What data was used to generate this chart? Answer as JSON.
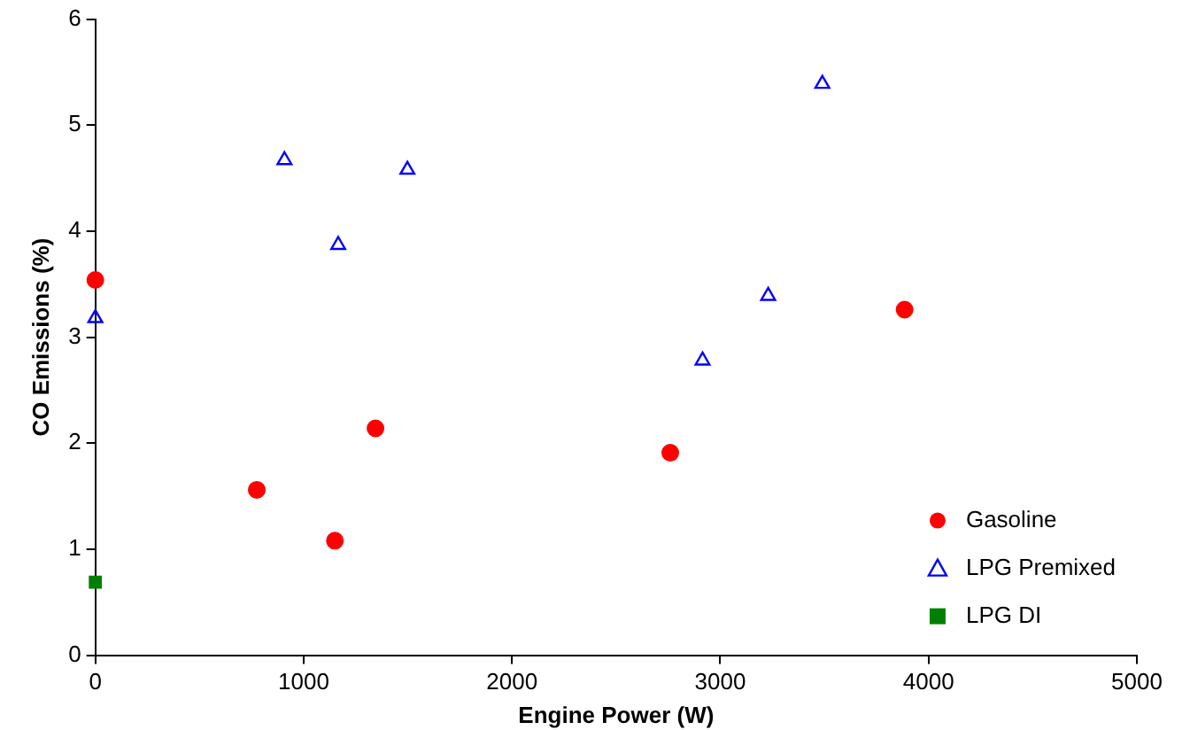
{
  "chart_data": {
    "type": "scatter",
    "xlabel": "Engine Power (W)",
    "ylabel": "CO Emissions (%)",
    "xlim": [
      0,
      5000
    ],
    "xticks": [
      0,
      1000,
      2000,
      3000,
      4000,
      5000
    ],
    "ylim": [
      0,
      6
    ],
    "yticks": [
      0,
      1,
      2,
      3,
      4,
      5,
      6
    ],
    "grid": false,
    "legend": "bottom right",
    "series": [
      {
        "name": "Gasoline",
        "color": "#ff0000",
        "marker": "circle",
        "x": [
          0,
          775,
          1150,
          1345,
          2760,
          3885
        ],
        "values": [
          3.54,
          1.56,
          1.08,
          2.14,
          1.91,
          3.26
        ]
      },
      {
        "name": "LPG Premixed",
        "color": "#0000ff",
        "marker": "triangle",
        "x": [
          0,
          908,
          1166,
          1498,
          2915,
          3230,
          3490
        ],
        "values": [
          3.18,
          4.67,
          3.87,
          4.58,
          2.78,
          3.39,
          5.39
        ]
      },
      {
        "name": "LPG DI",
        "color": "#008000",
        "marker": "square",
        "x": [
          0
        ],
        "values": [
          0.69
        ]
      }
    ]
  }
}
